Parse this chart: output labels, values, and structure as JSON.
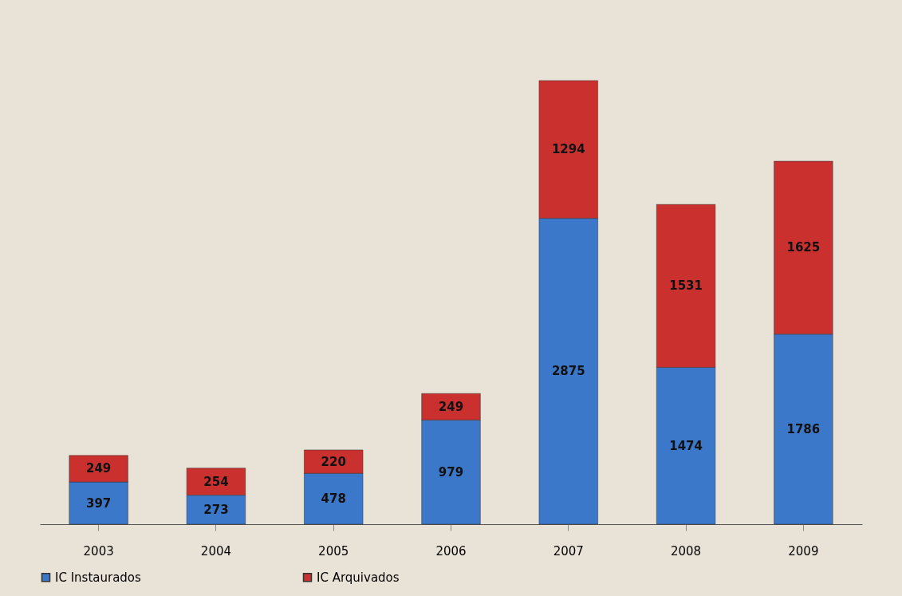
{
  "chart_data": {
    "type": "bar",
    "stacked": true,
    "data_labels": true,
    "legend": "bottom",
    "categories": [
      "2003",
      "2004",
      "2005",
      "2006",
      "2007",
      "2008",
      "2009"
    ],
    "series": [
      {
        "name": "IC Instaurados",
        "color": "#3b78c9",
        "values": [
          397,
          273,
          478,
          979,
          2875,
          1474,
          1786
        ]
      },
      {
        "name": "IC Arquivados",
        "color": "#c9302e",
        "values": [
          249,
          254,
          220,
          249,
          1294,
          1531,
          1625
        ]
      }
    ]
  }
}
